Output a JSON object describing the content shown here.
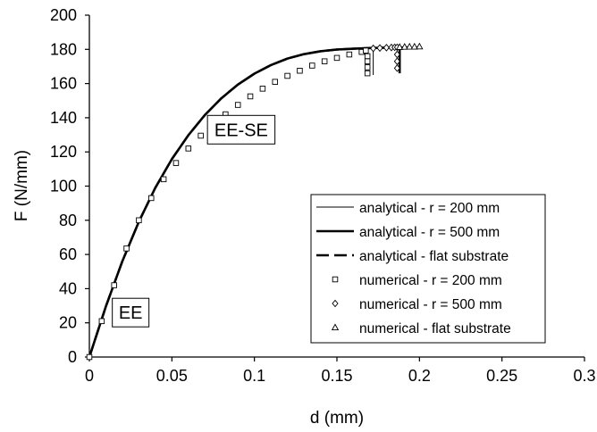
{
  "chart_data": {
    "type": "line",
    "title": "",
    "xlabel": "d (mm)",
    "ylabel": "F (N/mm)",
    "xlim": [
      0,
      0.3
    ],
    "ylim": [
      0,
      200
    ],
    "xticks": [
      "0",
      "0.05",
      "0.1",
      "0.15",
      "0.2",
      "0.25",
      "0.3"
    ],
    "yticks": [
      "0",
      "20",
      "40",
      "60",
      "80",
      "100",
      "120",
      "140",
      "160",
      "180",
      "200"
    ],
    "grid": false,
    "legend_position": "bottom-right",
    "annotations": [
      {
        "text": "EE-SE",
        "x": 0.092,
        "y": 133
      },
      {
        "text": "EE",
        "x": 0.025,
        "y": 26
      }
    ],
    "series": [
      {
        "name": "analytical - r = 200 mm",
        "style": "thin-line",
        "x": [
          0,
          0.01,
          0.02,
          0.03,
          0.04,
          0.05,
          0.06,
          0.07,
          0.08,
          0.09,
          0.1,
          0.11,
          0.12,
          0.13,
          0.14,
          0.15,
          0.16,
          0.165,
          0.17,
          0.172,
          0.172
        ],
        "y": [
          0,
          29.6,
          56.1,
          79.2,
          99.1,
          115.8,
          129.8,
          141.6,
          151.4,
          159.4,
          165.8,
          170.8,
          174.6,
          177.2,
          178.9,
          179.9,
          180.4,
          180.5,
          180.5,
          180.5,
          165
        ]
      },
      {
        "name": "analytical - r = 500 mm",
        "style": "thick-line",
        "x": [
          0,
          0.01,
          0.02,
          0.03,
          0.04,
          0.05,
          0.06,
          0.07,
          0.08,
          0.09,
          0.1,
          0.11,
          0.12,
          0.13,
          0.14,
          0.15,
          0.16,
          0.17,
          0.18,
          0.186,
          0.188,
          0.188
        ],
        "y": [
          0,
          29.6,
          56.1,
          79.2,
          99.1,
          115.8,
          129.8,
          141.6,
          151.4,
          159.4,
          165.8,
          170.8,
          174.6,
          177.2,
          178.9,
          179.9,
          180.4,
          180.8,
          181.0,
          181.0,
          181.0,
          166
        ]
      },
      {
        "name": "analytical - flat substrate",
        "style": "dashed-line",
        "x": [
          0,
          0.01,
          0.02,
          0.03,
          0.04,
          0.05,
          0.06,
          0.07,
          0.08,
          0.09,
          0.1,
          0.11,
          0.12,
          0.13,
          0.14,
          0.15,
          0.16,
          0.17,
          0.18,
          0.19,
          0.2
        ],
        "y": [
          0,
          29.6,
          56.1,
          79.2,
          99.1,
          115.8,
          129.8,
          141.6,
          151.4,
          159.4,
          165.8,
          170.8,
          174.6,
          177.2,
          178.9,
          179.9,
          180.4,
          180.8,
          181.0,
          181.1,
          181.1
        ]
      },
      {
        "name": "numerical - r = 200 mm",
        "marker": "square",
        "x": [
          0,
          0.0075,
          0.015,
          0.0225,
          0.03,
          0.0375,
          0.045,
          0.0525,
          0.06,
          0.0675,
          0.075,
          0.0825,
          0.09,
          0.0975,
          0.105,
          0.1125,
          0.12,
          0.1275,
          0.135,
          0.1425,
          0.15,
          0.1575,
          0.165,
          0.1675,
          0.1685,
          0.1685,
          0.1685,
          0.1685
        ],
        "y": [
          0,
          21,
          42,
          63.5,
          80,
          93,
          104,
          113.5,
          122,
          129.5,
          136,
          142,
          147.5,
          152.5,
          157,
          161,
          164.5,
          167.5,
          170.5,
          173,
          175,
          177,
          178.5,
          179.3,
          176,
          173,
          169.5,
          166
        ]
      },
      {
        "name": "numerical - r = 500 mm",
        "marker": "diamond",
        "x": [
          0.172,
          0.176,
          0.18,
          0.183,
          0.185,
          0.1865,
          0.1865,
          0.1865,
          0.1865
        ],
        "y": [
          180.6,
          180.8,
          181.0,
          181.1,
          181.2,
          181.2,
          177,
          173,
          169
        ]
      },
      {
        "name": "numerical - flat substrate",
        "marker": "triangle",
        "x": [
          0.188,
          0.191,
          0.194,
          0.197,
          0.2
        ],
        "y": [
          181.3,
          181.4,
          181.5,
          181.5,
          181.6
        ]
      }
    ]
  }
}
